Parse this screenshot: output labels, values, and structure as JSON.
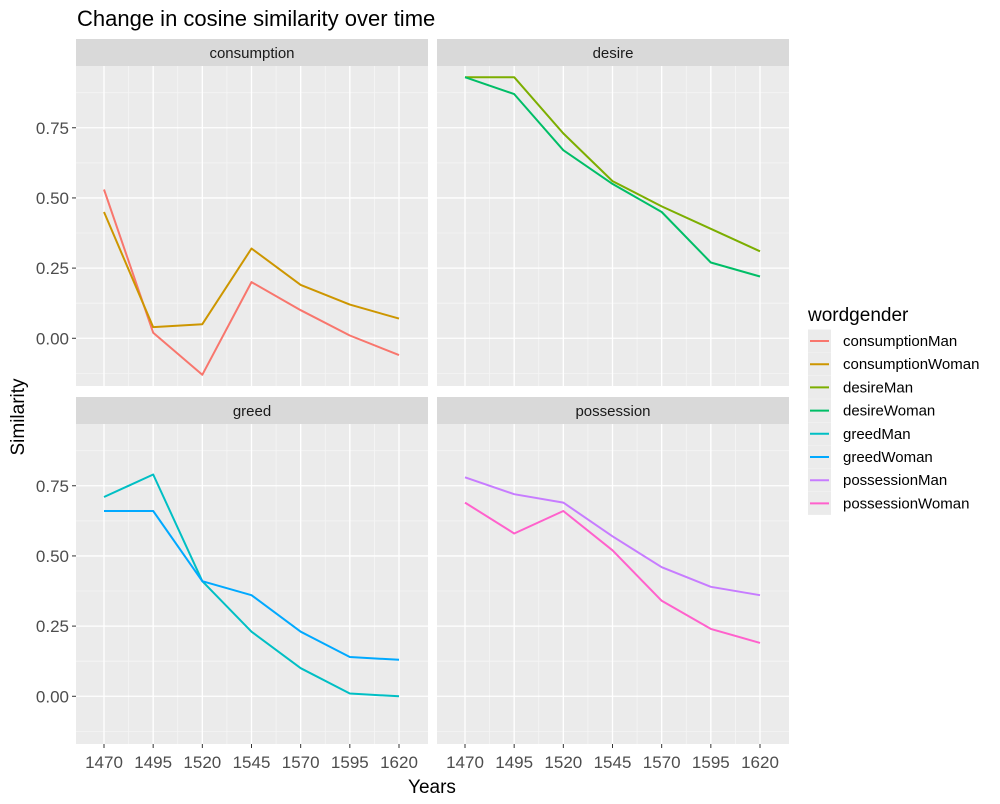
{
  "chart_data": {
    "type": "line",
    "title": "Change in cosine similarity over time",
    "xlabel": "Years",
    "ylabel": "Similarity",
    "x": [
      1470,
      1495,
      1520,
      1545,
      1570,
      1595,
      1620
    ],
    "x_tick_labels": [
      "1470",
      "1495",
      "1520",
      "1545",
      "1570",
      "1595",
      "1620"
    ],
    "ylim": [
      -0.17,
      0.97
    ],
    "y_ticks": [
      0.0,
      0.25,
      0.5,
      0.75
    ],
    "y_tick_labels": [
      "0.00",
      "0.25",
      "0.50",
      "0.75"
    ],
    "grid": true,
    "legend": {
      "title": "wordgender",
      "position": "right"
    },
    "facets": [
      {
        "label": "consumption",
        "series": [
          {
            "name": "consumptionMan",
            "color": "#F8766D",
            "values": [
              0.53,
              0.02,
              -0.13,
              0.2,
              0.1,
              0.01,
              -0.06
            ]
          },
          {
            "name": "consumptionWoman",
            "color": "#CD9600",
            "values": [
              0.45,
              0.04,
              0.05,
              0.32,
              0.19,
              0.12,
              0.07
            ]
          }
        ]
      },
      {
        "label": "desire",
        "series": [
          {
            "name": "desireMan",
            "color": "#7CAE00",
            "values": [
              0.93,
              0.93,
              0.73,
              0.56,
              0.47,
              0.39,
              0.31
            ]
          },
          {
            "name": "desireWoman",
            "color": "#00BE67",
            "values": [
              0.93,
              0.87,
              0.67,
              0.55,
              0.45,
              0.27,
              0.22
            ]
          }
        ]
      },
      {
        "label": "greed",
        "series": [
          {
            "name": "greedMan",
            "color": "#00BFC4",
            "values": [
              0.71,
              0.79,
              0.41,
              0.23,
              0.1,
              0.01,
              0.0
            ]
          },
          {
            "name": "greedWoman",
            "color": "#00A9FF",
            "values": [
              0.66,
              0.66,
              0.41,
              0.36,
              0.23,
              0.14,
              0.13
            ]
          }
        ]
      },
      {
        "label": "possession",
        "series": [
          {
            "name": "possessionMan",
            "color": "#C77CFF",
            "values": [
              0.78,
              0.72,
              0.69,
              0.57,
              0.46,
              0.39,
              0.36
            ]
          },
          {
            "name": "possessionWoman",
            "color": "#FF61CC",
            "values": [
              0.69,
              0.58,
              0.66,
              0.52,
              0.34,
              0.24,
              0.19
            ]
          }
        ]
      }
    ]
  }
}
